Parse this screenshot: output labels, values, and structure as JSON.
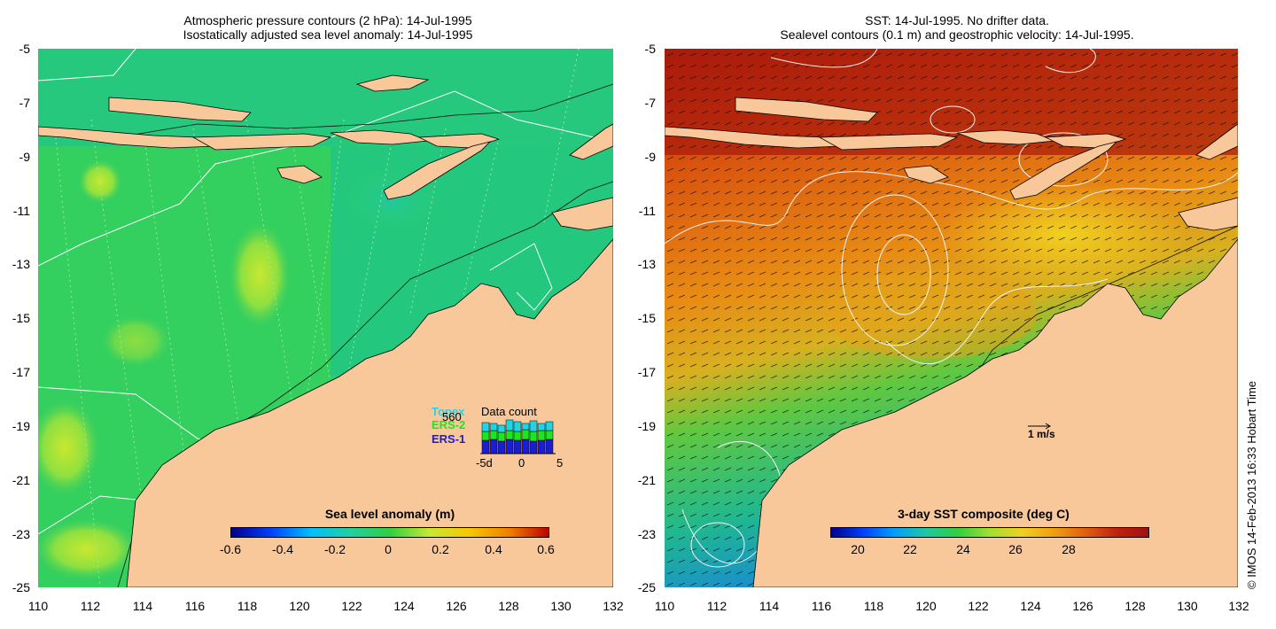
{
  "left_title": {
    "line1": "Atmospheric pressure contours (2 hPa): 14-Jul-1995",
    "line2": "Isostatically adjusted sea level anomaly: 14-Jul-1995"
  },
  "right_title": {
    "line1": "SST: 14-Jul-1995. No drifter data.",
    "line2": "Sealevel contours (0.1 m) and geostrophic velocity: 14-Jul-1995."
  },
  "y_ticks": [
    "-5",
    "-7",
    "-9",
    "-11",
    "-13",
    "-15",
    "-17",
    "-19",
    "-21",
    "-23",
    "-25"
  ],
  "x_ticks": [
    "110",
    "112",
    "114",
    "116",
    "118",
    "120",
    "122",
    "124",
    "126",
    "128",
    "130",
    "132"
  ],
  "left_colorbar": {
    "title": "Sea level anomaly (m)",
    "ticks": [
      "-0.6",
      "-0.4",
      "-0.2",
      "0",
      "0.2",
      "0.4",
      "0.6"
    ]
  },
  "right_colorbar": {
    "title": "3-day SST composite (deg C)",
    "ticks": [
      "20",
      "22",
      "24",
      "26",
      "28"
    ]
  },
  "legend": {
    "title": "Data count",
    "count": "560",
    "sat1": "Topex",
    "sat2": "ERS-2",
    "sat3": "ERS-1",
    "axis_ticks": [
      "-5d",
      "0",
      "5"
    ],
    "sat1_color": "#22d3e6",
    "sat2_color": "#1ee61e",
    "sat3_color": "#1c1cd0"
  },
  "velocity_scale": "1 m/s",
  "credit": "© IMOS 14-Feb-2013 16:33 Hobart Time",
  "colors": {
    "land": "#f8c89a",
    "ocean_sla": "#2fcf6a",
    "sst_warm": "#c83a10",
    "sst_cool": "#1fc56a"
  }
}
